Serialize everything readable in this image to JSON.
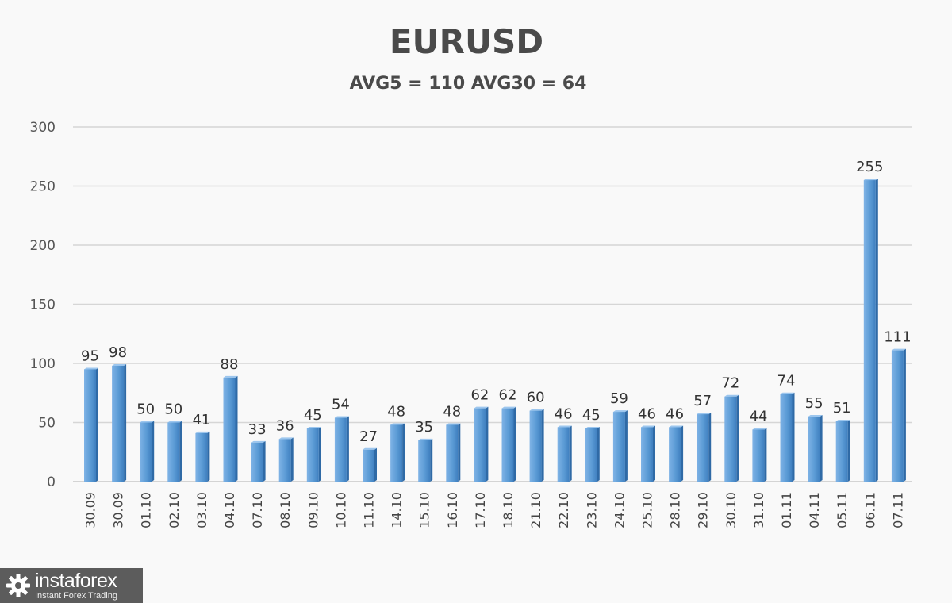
{
  "chart_data": {
    "type": "bar",
    "title": "EURUSD",
    "subtitle": "AVG5 = 110 AVG30 = 64",
    "categories": [
      "30.09",
      "30.09",
      "01.10",
      "02.10",
      "03.10",
      "04.10",
      "07.10",
      "08.10",
      "09.10",
      "10.10",
      "11.10",
      "14.10",
      "15.10",
      "16.10",
      "17.10",
      "18.10",
      "21.10",
      "22.10",
      "23.10",
      "24.10",
      "25.10",
      "28.10",
      "29.10",
      "30.10",
      "31.10",
      "01.11",
      "04.11",
      "05.11",
      "06.11",
      "07.11"
    ],
    "values": [
      95,
      98,
      50,
      50,
      41,
      88,
      33,
      36,
      45,
      54,
      27,
      48,
      35,
      48,
      62,
      62,
      60,
      46,
      45,
      59,
      46,
      46,
      57,
      72,
      44,
      74,
      55,
      51,
      255,
      111
    ],
    "ylim": [
      0,
      300
    ],
    "yticks": [
      0,
      50,
      100,
      150,
      200,
      250,
      300
    ],
    "grid": true,
    "legend": "none",
    "bar_color": "#5b9bd5"
  },
  "logo": {
    "brand": "instaforex",
    "tagline": "Instant Forex Trading",
    "icon": "gear-icon"
  }
}
